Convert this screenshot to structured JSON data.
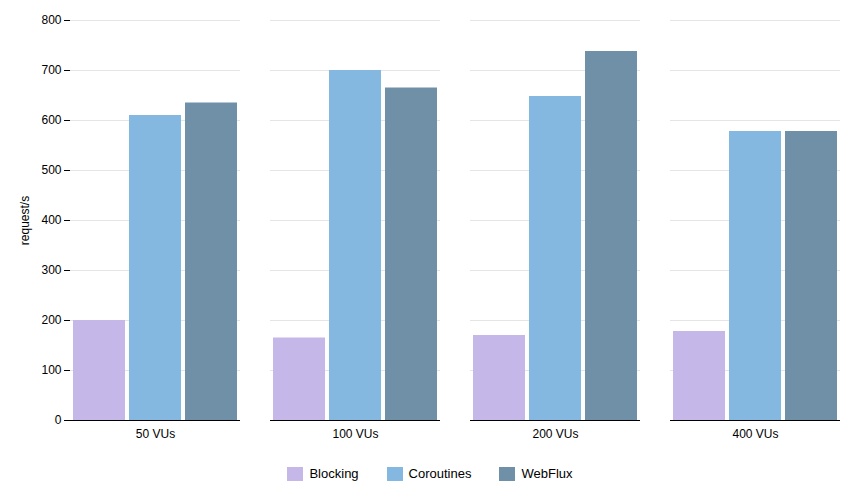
{
  "chart_data": {
    "type": "bar",
    "categories": [
      "50 VUs",
      "100 VUs",
      "200 VUs",
      "400 VUs"
    ],
    "series": [
      {
        "name": "Blocking",
        "color": "#c5b8e8",
        "values": [
          200,
          165,
          170,
          178
        ]
      },
      {
        "name": "Coroutines",
        "color": "#85b8e0",
        "values": [
          610,
          700,
          648,
          578
        ]
      },
      {
        "name": "WebFlux",
        "color": "#7090a8",
        "values": [
          635,
          665,
          738,
          578
        ]
      }
    ],
    "ylabel": "request/s",
    "ylim": [
      0,
      800
    ],
    "yticks": [
      0,
      100,
      200,
      300,
      400,
      500,
      600,
      700,
      800
    ],
    "grid": true,
    "legend": "bottom"
  }
}
